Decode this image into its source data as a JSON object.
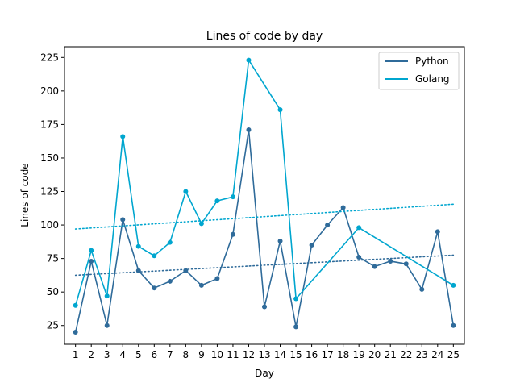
{
  "chart_data": {
    "type": "line",
    "title": "Lines of code by day",
    "xlabel": "Day",
    "ylabel": "Lines of code",
    "xlim": [
      0.3,
      25.7
    ],
    "ylim": [
      11,
      233
    ],
    "xticks": [
      1,
      2,
      3,
      4,
      5,
      6,
      7,
      8,
      9,
      10,
      11,
      12,
      13,
      14,
      15,
      16,
      17,
      18,
      19,
      20,
      21,
      22,
      23,
      24,
      25
    ],
    "yticks": [
      25,
      50,
      75,
      100,
      125,
      150,
      175,
      200,
      225
    ],
    "grid": false,
    "legend": "top-right",
    "series": [
      {
        "name": "Python",
        "color": "#2f6b9a",
        "x": [
          1,
          2,
          3,
          4,
          5,
          6,
          7,
          8,
          9,
          10,
          11,
          12,
          13,
          14,
          15,
          16,
          17,
          18,
          19,
          20,
          21,
          22,
          23,
          24,
          25
        ],
        "y": [
          20,
          73,
          25,
          104,
          66,
          53,
          58,
          66,
          55,
          60,
          93,
          171,
          39,
          88,
          24,
          85,
          100,
          113,
          76,
          69,
          73,
          71,
          52,
          95,
          25
        ],
        "trend": [
          62.5,
          77.5
        ]
      },
      {
        "name": "Golang",
        "color": "#00a6cf",
        "x": [
          1,
          2,
          3,
          4,
          5,
          6,
          7,
          8,
          9,
          10,
          11,
          12,
          14,
          15,
          19,
          25
        ],
        "y": [
          40,
          81,
          47,
          166,
          84,
          77,
          87,
          125,
          101,
          118,
          121,
          223,
          186,
          45,
          98,
          55
        ],
        "trend": [
          97,
          115.5
        ]
      }
    ]
  }
}
